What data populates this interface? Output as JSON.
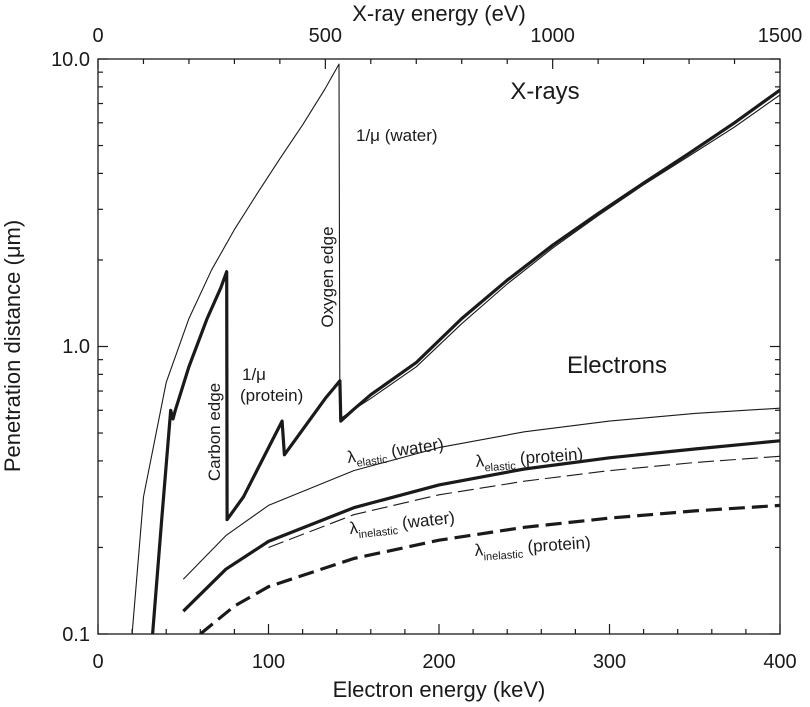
{
  "chart_data": {
    "type": "line",
    "title": "",
    "xlabel": "Electron energy (keV)",
    "x2label": "X-ray energy (eV)",
    "ylabel": "Penetration distance (μm)",
    "xlim": [
      0,
      400
    ],
    "x2lim": [
      0,
      1500
    ],
    "ylim": [
      0.1,
      10.0
    ],
    "yscale": "log",
    "x_ticks": [
      "0",
      "100",
      "200",
      "300",
      "400"
    ],
    "x2_ticks": [
      "0",
      "500",
      "1000",
      "1500"
    ],
    "y_ticks": [
      "0.1",
      "1.0",
      "10.0"
    ],
    "series": [
      {
        "name": "1/μ (water)",
        "axis": "x2",
        "style": "thin",
        "x": [
          75,
          100,
          150,
          200,
          250,
          300,
          350,
          400,
          450,
          500,
          530,
          532,
          560,
          600,
          700,
          800,
          900,
          1000,
          1100,
          1200,
          1300,
          1400,
          1500
        ],
        "y": [
          0.1,
          0.3,
          0.75,
          1.25,
          1.85,
          2.55,
          3.4,
          4.5,
          5.9,
          7.9,
          9.6,
          0.56,
          0.6,
          0.66,
          0.85,
          1.2,
          1.65,
          2.2,
          2.85,
          3.65,
          4.6,
          5.8,
          7.5
        ]
      },
      {
        "name": "1/μ (protein)",
        "axis": "x2",
        "style": "thick",
        "x": [
          120,
          140,
          160,
          165,
          170,
          200,
          240,
          270,
          283,
          284,
          320,
          405,
          410,
          500,
          520,
          532,
          534,
          560,
          600,
          700,
          800,
          900,
          1000,
          1100,
          1200,
          1300,
          1400,
          1500
        ],
        "y": [
          0.1,
          0.25,
          0.6,
          0.56,
          0.6,
          0.85,
          1.25,
          1.6,
          1.82,
          0.25,
          0.3,
          0.55,
          0.42,
          0.66,
          0.72,
          0.76,
          0.55,
          0.6,
          0.68,
          0.88,
          1.25,
          1.7,
          2.25,
          2.9,
          3.7,
          4.7,
          6.0,
          7.8
        ]
      },
      {
        "name": "λelastic (water)",
        "label_main": "λ",
        "label_sub": "elastic",
        "label_rest": " (water)",
        "axis": "x",
        "style": "thin",
        "x": [
          50,
          75,
          100,
          150,
          200,
          250,
          300,
          350,
          400
        ],
        "y": [
          0.155,
          0.22,
          0.28,
          0.37,
          0.445,
          0.505,
          0.55,
          0.585,
          0.61
        ]
      },
      {
        "name": "λelastic (protein)",
        "label_main": "λ",
        "label_sub": "elastic",
        "label_rest": " (protein)",
        "axis": "x",
        "style": "thick",
        "x": [
          50,
          75,
          100,
          150,
          200,
          250,
          300,
          350,
          400
        ],
        "y": [
          0.12,
          0.168,
          0.21,
          0.275,
          0.33,
          0.375,
          0.41,
          0.44,
          0.47
        ]
      },
      {
        "name": "λinelastic (water)",
        "label_main": "λ",
        "label_sub": "inelastic",
        "label_rest": " (water)",
        "axis": "x",
        "style": "thin-dash",
        "x": [
          100,
          150,
          200,
          250,
          300,
          350,
          400
        ],
        "y": [
          0.2,
          0.26,
          0.305,
          0.34,
          0.37,
          0.395,
          0.415
        ]
      },
      {
        "name": "λinelastic (protein)",
        "label_main": "λ",
        "label_sub": "inelastic",
        "label_rest": " (protein)",
        "axis": "x",
        "style": "thick-dash",
        "x": [
          60,
          80,
          100,
          150,
          200,
          250,
          300,
          350,
          400
        ],
        "y": [
          0.1,
          0.125,
          0.146,
          0.183,
          0.212,
          0.235,
          0.253,
          0.268,
          0.28
        ]
      }
    ],
    "annotations": {
      "xrays": "X-rays",
      "electrons": "Electrons",
      "water_mu": "1/μ (water)",
      "protein_mu_line1": "1/μ",
      "protein_mu_line2": "(protein)",
      "carbon_edge": "Carbon edge",
      "oxygen_edge": "Oxygen edge"
    }
  }
}
